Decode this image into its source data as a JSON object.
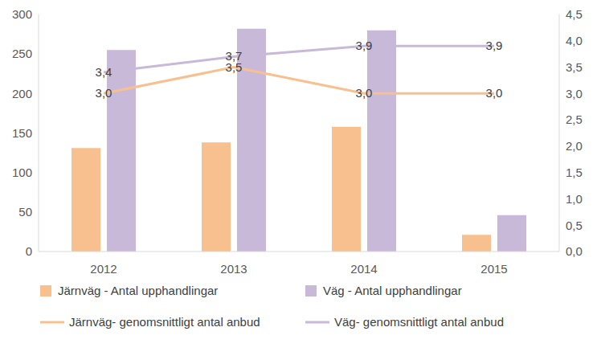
{
  "chart_data": {
    "type": "bar",
    "categories": [
      "2012",
      "2013",
      "2014",
      "2015"
    ],
    "series": [
      {
        "name": "Järnväg - Antal upphandlingar",
        "type": "bar",
        "color": "#F9C08F",
        "values": [
          131,
          138,
          158,
          21
        ]
      },
      {
        "name": "Väg - Antal upphandlingar",
        "type": "bar",
        "color": "#C9B9D9",
        "values": [
          255,
          282,
          280,
          46
        ]
      },
      {
        "name": "Järnväg- genomsnittligt antal anbud",
        "type": "line",
        "axis": "y2",
        "color": "#F9C08F",
        "marker": "none",
        "data_labels": true,
        "values": [
          3.0,
          3.5,
          3.0,
          3.0
        ],
        "value_labels": [
          "3,0",
          "3,5",
          "3,0",
          "3,0"
        ]
      },
      {
        "name": "Väg- genomsnittligt antal anbud",
        "type": "line",
        "axis": "y2",
        "color": "#C9B9D9",
        "marker": "none",
        "data_labels": true,
        "values": [
          3.4,
          3.7,
          3.9,
          3.9
        ],
        "value_labels": [
          "3,4",
          "3,7",
          "3,9",
          "3,9"
        ]
      }
    ],
    "ylim": [
      0,
      300
    ],
    "yticks": [
      0,
      50,
      100,
      150,
      200,
      250,
      300
    ],
    "y2lim": [
      0,
      4.5
    ],
    "y2ticks": [
      {
        "value": 0,
        "label": "0,0"
      },
      {
        "value": 0.5,
        "label": "0,5"
      },
      {
        "value": 1,
        "label": "1,0"
      },
      {
        "value": 1.5,
        "label": "1,5"
      },
      {
        "value": 2,
        "label": "2,0"
      },
      {
        "value": 2.5,
        "label": "2,5"
      },
      {
        "value": 3,
        "label": "3,0"
      },
      {
        "value": 3.5,
        "label": "3,5"
      },
      {
        "value": 4,
        "label": "4,0"
      },
      {
        "value": 4.5,
        "label": "4,5"
      }
    ],
    "grid": false,
    "legend": "bottom"
  }
}
